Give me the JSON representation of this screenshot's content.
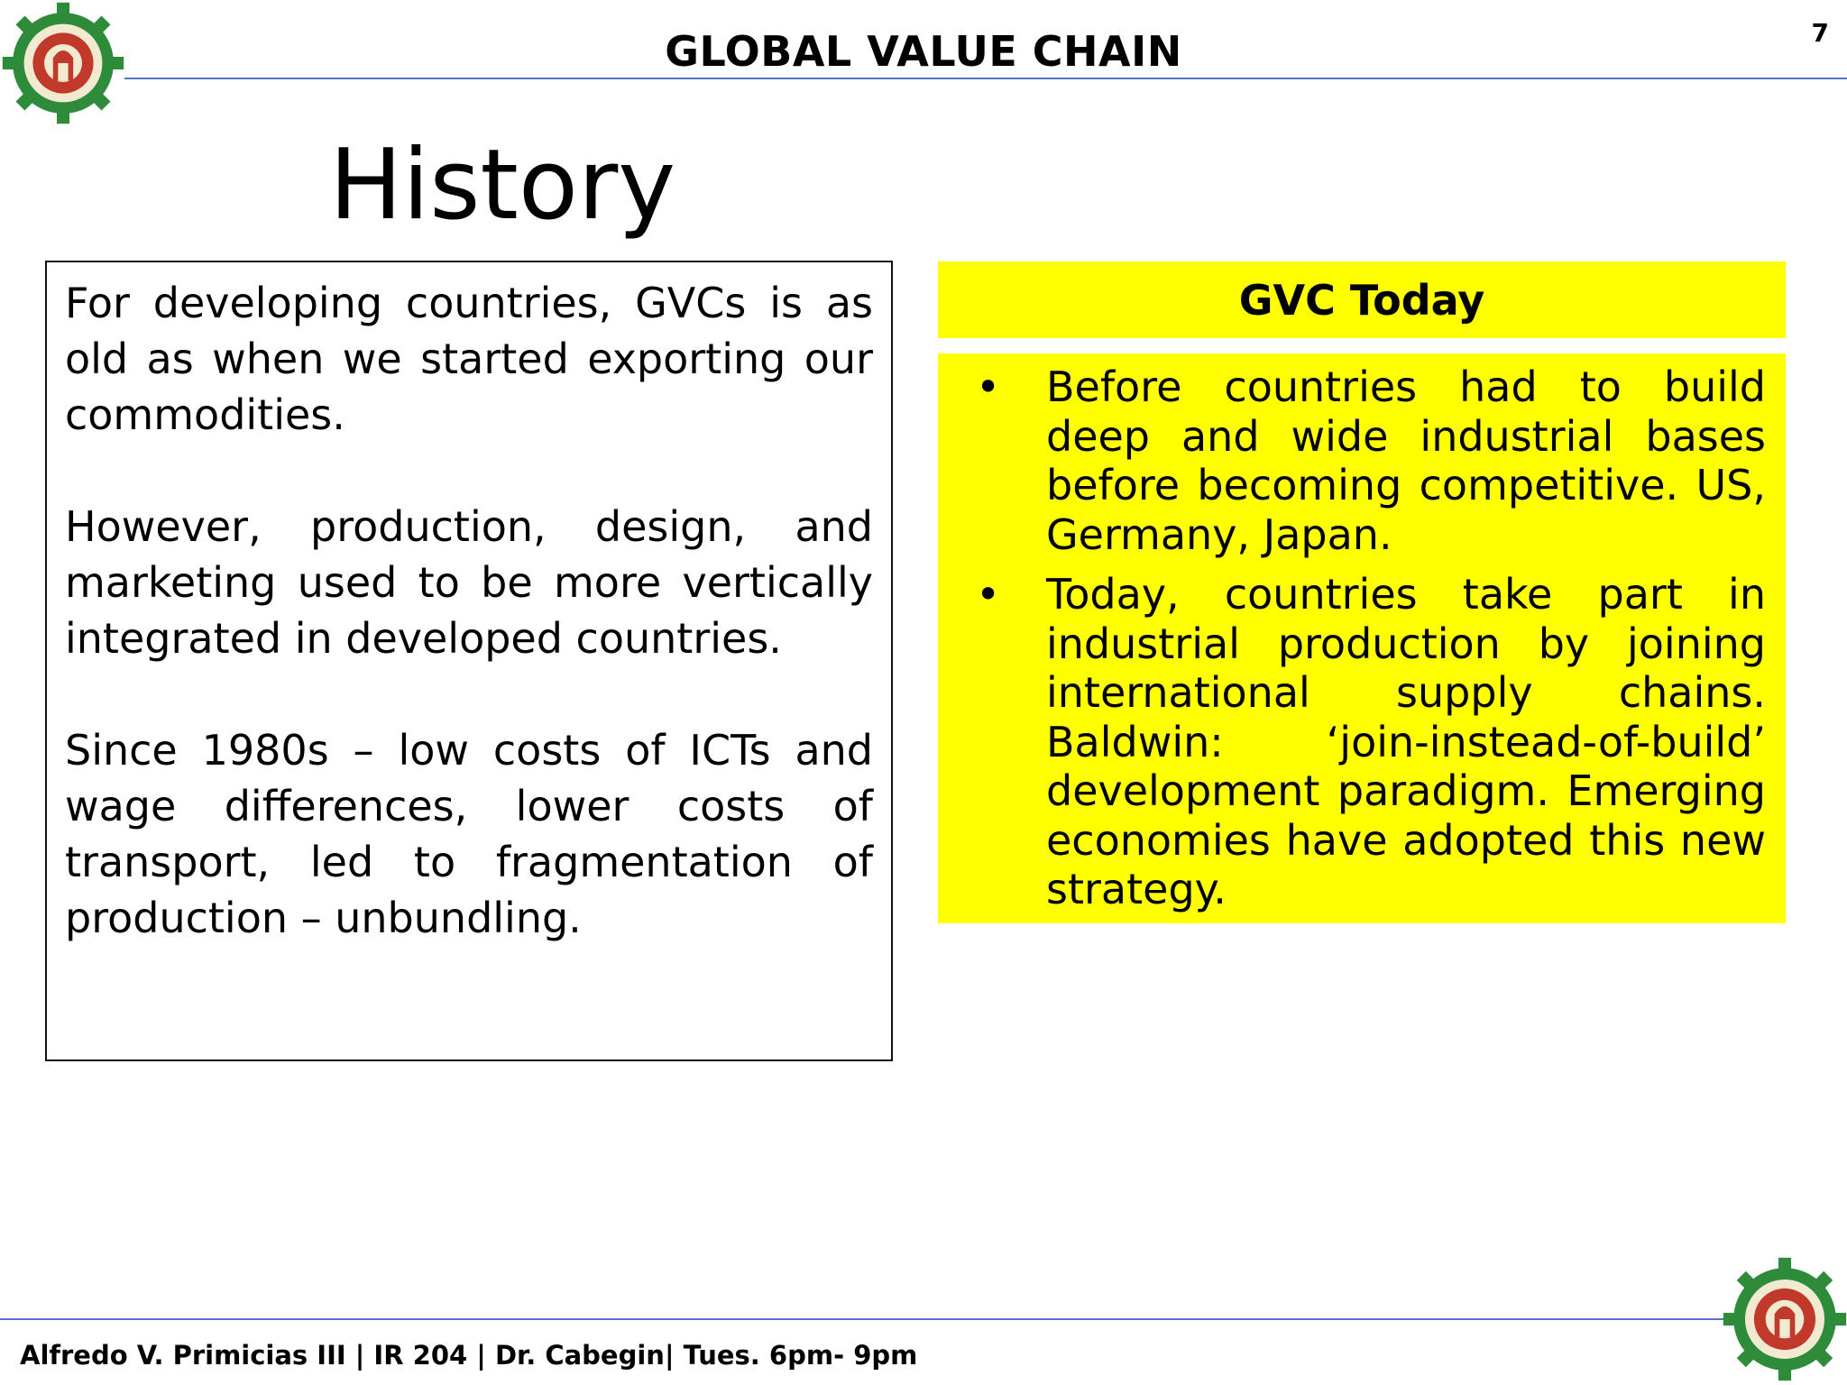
{
  "header": {
    "title": "GLOBAL VALUE CHAIN",
    "page_number": "7"
  },
  "slide": {
    "title": "History"
  },
  "history_box": {
    "paragraphs": [
      "For developing countries, GVCs is as old as when we started exporting our commodities.",
      "However, production, design, and marketing used to be more vertically integrated in developed countries.",
      "Since 1980s – low costs of ICTs and wage differences, lower costs of transport, led to fragmentation of production – unbundling."
    ]
  },
  "gvc_today": {
    "title": "GVC Today",
    "bullet_symbol": "•",
    "bullets": [
      "Before countries had to build deep and wide industrial bases before becoming competitive. US, Germany, Japan.",
      "Today, countries take part in industrial production by joining international supply chains. Baldwin: ‘join-instead-of-build’ development paradigm. Emerging economies have adopted this new strategy."
    ],
    "highlight_color": "#ffff00"
  },
  "footer": {
    "text": "Alfredo V. Primicias III | IR 204 | Dr. Cabegin| Tues. 6pm- 9pm"
  },
  "logo": {
    "icon": "university-seal-icon",
    "colors": {
      "gear": "#2e8b3a",
      "inner": "#c0392b"
    }
  },
  "colors": {
    "rule": "#4f77c2"
  }
}
